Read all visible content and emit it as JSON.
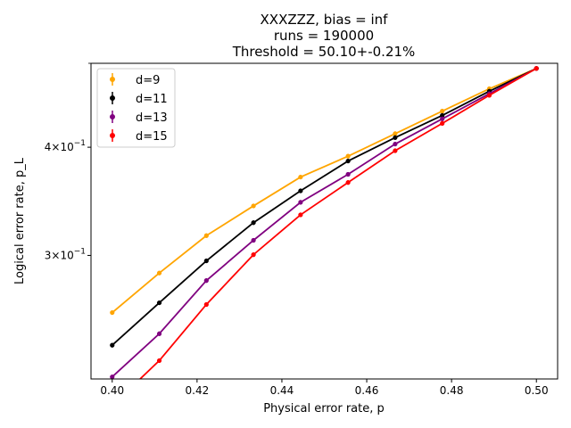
{
  "chart_data": {
    "type": "line",
    "title": "XXXZZZ, bias = inf",
    "subtitle_lines": [
      "runs = 190000",
      "Threshold = 50.10+-0.21%"
    ],
    "xlabel": "Physical error rate, p",
    "ylabel": "Logical error rate, p_L",
    "xlim": [
      0.395,
      0.505
    ],
    "ylim": [
      0.216,
      0.5
    ],
    "yscale": "log",
    "grid": false,
    "legend_position": "top-left",
    "x_ticks": [
      0.4,
      0.42,
      0.44,
      0.46,
      0.48,
      0.5
    ],
    "x_tick_labels": [
      "0.40",
      "0.42",
      "0.44",
      "0.46",
      "0.48",
      "0.50"
    ],
    "y_ticks": [
      {
        "value": 0.3,
        "base": "3",
        "exp": "−1"
      },
      {
        "value": 0.4,
        "base": "4",
        "exp": "−1"
      }
    ],
    "x": [
      0.4,
      0.4111,
      0.4222,
      0.4333,
      0.4444,
      0.4556,
      0.4667,
      0.4778,
      0.4889,
      0.5
    ],
    "series": [
      {
        "name": "d=9",
        "color": "#FFA500",
        "values": [
          0.2577,
          0.2863,
          0.3162,
          0.3422,
          0.3695,
          0.3906,
          0.4147,
          0.4403,
          0.4673,
          0.4932
        ]
      },
      {
        "name": "d=11",
        "color": "#000000",
        "values": [
          0.2363,
          0.2645,
          0.2957,
          0.3273,
          0.3562,
          0.3856,
          0.4104,
          0.4353,
          0.4642,
          0.4932
        ]
      },
      {
        "name": "d=13",
        "color": "#800080",
        "values": [
          0.2172,
          0.2436,
          0.2806,
          0.3123,
          0.3455,
          0.3722,
          0.4034,
          0.4313,
          0.4612,
          0.4932
        ]
      },
      {
        "name": "d=15",
        "color": "#FF0000",
        "values": [
          0.2012,
          0.2268,
          0.2633,
          0.3006,
          0.3342,
          0.3642,
          0.3963,
          0.4262,
          0.4592,
          0.4932
        ]
      }
    ]
  }
}
